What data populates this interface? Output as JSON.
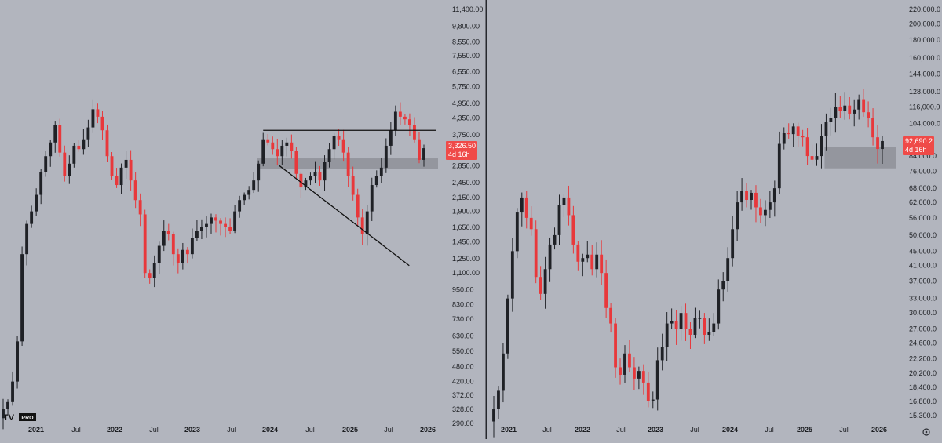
{
  "theme": {
    "background": "#b2b5be",
    "up_color": "#1f2126",
    "down_color": "#e8383b",
    "zone_color": "#8e9199",
    "label_color": "#ef4a48"
  },
  "logo": {
    "text": "TV",
    "badge": "PRO"
  },
  "chart_data": [
    {
      "type": "candlestick",
      "scale": "log",
      "x_ticks": [
        "2021",
        "Jul",
        "2022",
        "Jul",
        "2023",
        "Jul",
        "2024",
        "Jul",
        "2025",
        "Jul",
        "2026"
      ],
      "y_ticks": [
        "11,400.00",
        "9,800.00",
        "8,550.00",
        "7,550.00",
        "6,550.00",
        "5,750.00",
        "4,950.00",
        "4,350.00",
        "3,750.00",
        "3,326.50",
        "2,850.00",
        "2,450.00",
        "2,150.00",
        "1,900.00",
        "1,650.00",
        "1,450.00",
        "1,250.00",
        "1,100.00",
        "950.00",
        "830.00",
        "730.00",
        "630.00",
        "550.00",
        "480.00",
        "420.00",
        "372.00",
        "328.00",
        "290.00"
      ],
      "last_price": {
        "value": "3,326.50",
        "countdown": "4d 16h"
      },
      "closes": [
        330,
        350,
        420,
        600,
        1300,
        1700,
        1900,
        2200,
        2700,
        3100,
        3500,
        4100,
        3200,
        2600,
        2900,
        3400,
        3300,
        3600,
        4000,
        4700,
        4400,
        3900,
        3100,
        2600,
        2400,
        2800,
        3000,
        2500,
        2100,
        1850,
        1100,
        1050,
        1200,
        1400,
        1600,
        1550,
        1300,
        1200,
        1350,
        1300,
        1500,
        1600,
        1650,
        1700,
        1800,
        1750,
        1700,
        1650,
        1600,
        1900,
        2100,
        2200,
        2300,
        2500,
        2900,
        3600,
        3500,
        3300,
        3100,
        3400,
        3500,
        3250,
        2650,
        2350,
        2500,
        2600,
        2700,
        2500,
        2950,
        3300,
        3700,
        3600,
        3200,
        2600,
        2200,
        1800,
        1550,
        1900,
        2400,
        2600,
        2800,
        3400,
        3900,
        4600,
        4400,
        4300,
        4100,
        3600,
        3000,
        3326.5
      ],
      "annotations": [
        {
          "type": "horizontal_line",
          "value": 3900
        },
        {
          "type": "trend_line",
          "from": [
            0.676,
            2850
          ],
          "to": [
            0.97,
            1175
          ]
        },
        {
          "type": "zone",
          "low": 2760,
          "high": 3040
        }
      ]
    },
    {
      "type": "candlestick",
      "scale": "log",
      "x_ticks": [
        "2021",
        "Jul",
        "2022",
        "Jul",
        "2023",
        "Jul",
        "2024",
        "Jul",
        "2025",
        "Jul",
        "2026"
      ],
      "y_ticks": [
        "220,000.0",
        "200,000.0",
        "180,000.0",
        "160,000.0",
        "144,000.0",
        "128,000.0",
        "116,000.0",
        "104,000.0",
        "92,690.2",
        "84,000.0",
        "76,000.0",
        "68,000.0",
        "62,000.0",
        "56,000.0",
        "50,000.0",
        "45,000.0",
        "41,000.0",
        "37,000.0",
        "33,000.0",
        "30,000.0",
        "27,000.0",
        "24,600.0",
        "22,200.0",
        "20,200.0",
        "18,400.0",
        "16,800.0",
        "15,300.0"
      ],
      "last_price": {
        "value": "92,690.2",
        "countdown": "4d 16h"
      },
      "closes": [
        16000,
        18000,
        23000,
        33000,
        45000,
        58000,
        64000,
        56000,
        52000,
        38000,
        34000,
        40000,
        47000,
        50000,
        61000,
        64000,
        57000,
        47000,
        42000,
        43000,
        44000,
        40000,
        44000,
        39000,
        31000,
        28000,
        21000,
        20000,
        23000,
        21000,
        19500,
        20500,
        19000,
        16800,
        17000,
        22000,
        24000,
        28000,
        28500,
        27000,
        30000,
        27000,
        26000,
        29000,
        29000,
        26000,
        26500,
        28000,
        35000,
        37000,
        43000,
        52000,
        62000,
        67000,
        63000,
        66000,
        60000,
        57000,
        59000,
        62000,
        68000,
        91000,
        98000,
        97000,
        102000,
        96000,
        95000,
        84000,
        82000,
        84000,
        96000,
        105000,
        108000,
        116000,
        113000,
        117000,
        111000,
        114000,
        122000,
        112000,
        108000,
        95000,
        88000,
        92690.2
      ],
      "annotations": [
        {
          "type": "zone",
          "low": 77500,
          "high": 89000
        }
      ]
    }
  ]
}
